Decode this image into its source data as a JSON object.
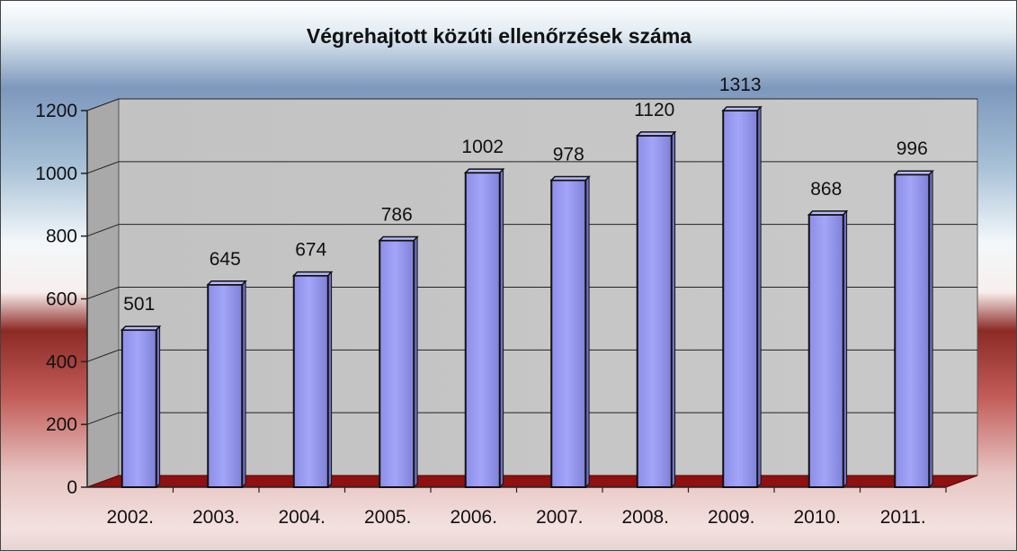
{
  "chart_data": {
    "type": "bar",
    "title": "Végrehajtott közúti ellenőrzések száma",
    "xlabel": "",
    "ylabel": "",
    "categories": [
      "2002.",
      "2003.",
      "2004.",
      "2005.",
      "2006.",
      "2007.",
      "2008.",
      "2009.",
      "2010.",
      "2011."
    ],
    "values": [
      501,
      645,
      674,
      786,
      1002,
      978,
      1120,
      1313,
      868,
      996
    ],
    "data_labels": [
      "501",
      "645",
      "674",
      "786",
      "1002",
      "978",
      "1120",
      "1313",
      "868",
      "996"
    ],
    "ylim": [
      0,
      1200
    ],
    "yticks": [
      0,
      200,
      400,
      600,
      800,
      1000,
      1200
    ],
    "ytick_labels": [
      "0",
      "200",
      "400",
      "600",
      "800",
      "1000",
      "1200"
    ],
    "grid": true,
    "legend": "none",
    "bar_color": "#9a9cf4",
    "plot_background": "#c6c6c6",
    "floor_color": "#8e1010"
  }
}
